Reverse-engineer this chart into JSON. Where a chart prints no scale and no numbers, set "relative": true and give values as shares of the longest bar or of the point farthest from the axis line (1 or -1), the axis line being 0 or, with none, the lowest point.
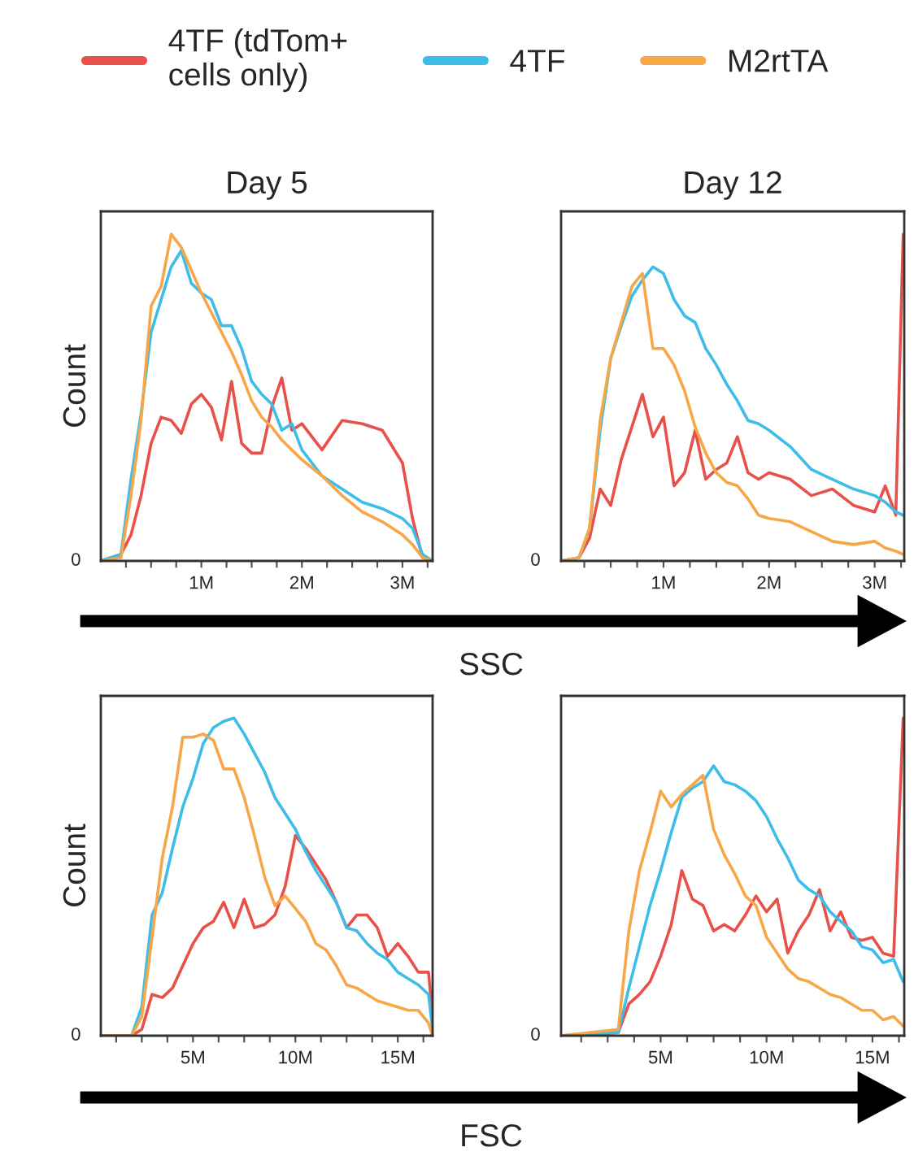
{
  "chart_data": [
    {
      "type": "line",
      "title": "Day 5",
      "ylabel": "Count",
      "xlabel": "SSC",
      "relative": true,
      "legend": "top",
      "annotations": [
        "0"
      ],
      "x": [
        0,
        0.2,
        0.3,
        0.4,
        0.5,
        0.6,
        0.7,
        0.8,
        0.9,
        1.0,
        1.1,
        1.2,
        1.3,
        1.4,
        1.5,
        1.6,
        1.7,
        1.8,
        1.9,
        2.0,
        2.2,
        2.4,
        2.6,
        2.8,
        3.0,
        3.1,
        3.2,
        3.3
      ],
      "xlim": [
        0,
        3.3
      ],
      "xticks": [
        {
          "value": 0.25,
          "label": null
        },
        {
          "value": 0.5,
          "label": null
        },
        {
          "value": 0.75,
          "label": null
        },
        {
          "value": 1,
          "label": "1M"
        },
        {
          "value": 1.25,
          "label": null
        },
        {
          "value": 1.5,
          "label": null
        },
        {
          "value": 1.75,
          "label": null
        },
        {
          "value": 2,
          "label": "2M"
        },
        {
          "value": 2.25,
          "label": null
        },
        {
          "value": 2.5,
          "label": null
        },
        {
          "value": 2.75,
          "label": null
        },
        {
          "value": 3,
          "label": "3M"
        },
        {
          "value": 3.25,
          "label": null
        }
      ],
      "series": [
        {
          "name": "4TF (tdTom+\ncells only)",
          "color": "#e8504a",
          "values": [
            0,
            0.02,
            0.08,
            0.2,
            0.36,
            0.44,
            0.43,
            0.39,
            0.48,
            0.51,
            0.47,
            0.37,
            0.55,
            0.36,
            0.33,
            0.33,
            0.47,
            0.56,
            0.4,
            0.42,
            0.34,
            0.43,
            0.42,
            0.4,
            0.3,
            0.13,
            0.01,
            0
          ]
        },
        {
          "name": "4TF",
          "color": "#3dbde8",
          "values": [
            0,
            0.02,
            0.25,
            0.45,
            0.7,
            0.8,
            0.9,
            0.95,
            0.85,
            0.82,
            0.8,
            0.72,
            0.72,
            0.65,
            0.55,
            0.51,
            0.48,
            0.4,
            0.42,
            0.34,
            0.26,
            0.22,
            0.18,
            0.16,
            0.13,
            0.1,
            0.02,
            0
          ]
        },
        {
          "name": "M2rtTA",
          "color": "#f7a747",
          "values": [
            0,
            0.01,
            0.2,
            0.43,
            0.78,
            0.84,
            1.0,
            0.96,
            0.89,
            0.82,
            0.76,
            0.7,
            0.64,
            0.57,
            0.49,
            0.44,
            0.41,
            0.37,
            0.34,
            0.31,
            0.26,
            0.2,
            0.15,
            0.12,
            0.08,
            0.05,
            0.01,
            0
          ]
        }
      ]
    },
    {
      "type": "line",
      "title": "Day 12",
      "relative": true,
      "annotations": [
        "0"
      ],
      "x": [
        0.03,
        0.2,
        0.3,
        0.4,
        0.5,
        0.6,
        0.7,
        0.8,
        0.9,
        1.0,
        1.1,
        1.2,
        1.3,
        1.4,
        1.5,
        1.6,
        1.7,
        1.8,
        1.9,
        2.0,
        2.2,
        2.4,
        2.6,
        2.8,
        3.0,
        3.1,
        3.2,
        3.27
      ],
      "xlim": [
        0.03,
        3.28
      ],
      "xticks": [
        {
          "value": 0.25,
          "label": null
        },
        {
          "value": 0.5,
          "label": null
        },
        {
          "value": 0.75,
          "label": null
        },
        {
          "value": 1,
          "label": "1M"
        },
        {
          "value": 1.25,
          "label": null
        },
        {
          "value": 1.5,
          "label": null
        },
        {
          "value": 1.75,
          "label": null
        },
        {
          "value": 2,
          "label": "2M"
        },
        {
          "value": 2.25,
          "label": null
        },
        {
          "value": 2.5,
          "label": null
        },
        {
          "value": 2.75,
          "label": null
        },
        {
          "value": 3,
          "label": "3M"
        },
        {
          "value": 3.25,
          "label": null
        }
      ],
      "series": [
        {
          "color": "#e8504a",
          "values": [
            0,
            0.01,
            0.07,
            0.22,
            0.17,
            0.31,
            0.41,
            0.51,
            0.38,
            0.44,
            0.23,
            0.27,
            0.4,
            0.25,
            0.28,
            0.3,
            0.38,
            0.27,
            0.25,
            0.27,
            0.25,
            0.2,
            0.22,
            0.17,
            0.15,
            0.23,
            0.14,
            1.0
          ]
        },
        {
          "color": "#3dbde8",
          "values": [
            0,
            0.01,
            0.1,
            0.4,
            0.62,
            0.72,
            0.81,
            0.86,
            0.9,
            0.88,
            0.8,
            0.75,
            0.73,
            0.65,
            0.6,
            0.54,
            0.49,
            0.43,
            0.42,
            0.4,
            0.35,
            0.28,
            0.25,
            0.22,
            0.2,
            0.18,
            0.15,
            0.14
          ]
        },
        {
          "color": "#f7a747",
          "values": [
            0,
            0.01,
            0.1,
            0.43,
            0.62,
            0.73,
            0.84,
            0.88,
            0.65,
            0.65,
            0.6,
            0.52,
            0.41,
            0.33,
            0.27,
            0.24,
            0.23,
            0.19,
            0.14,
            0.13,
            0.12,
            0.09,
            0.06,
            0.05,
            0.06,
            0.04,
            0.03,
            0.02
          ]
        }
      ]
    },
    {
      "type": "line",
      "ylabel": "Count",
      "xlabel": "FSC",
      "relative": true,
      "annotations": [
        "0"
      ],
      "x": [
        0.5,
        2,
        2.5,
        3,
        3.5,
        4,
        4.5,
        5,
        5.5,
        6,
        6.5,
        7,
        7.5,
        8,
        8.5,
        9,
        9.5,
        10,
        10.5,
        11,
        11.5,
        12,
        12.5,
        13,
        13.5,
        14,
        14.5,
        15,
        15.5,
        16,
        16.5,
        16.7
      ],
      "xlim": [
        0.5,
        16.7
      ],
      "xticks": [
        {
          "value": 1.25,
          "label": null
        },
        {
          "value": 2.5,
          "label": null
        },
        {
          "value": 3.75,
          "label": null
        },
        {
          "value": 5,
          "label": "5M"
        },
        {
          "value": 6.25,
          "label": null
        },
        {
          "value": 7.5,
          "label": null
        },
        {
          "value": 8.75,
          "label": null
        },
        {
          "value": 10,
          "label": "10M"
        },
        {
          "value": 11.25,
          "label": null
        },
        {
          "value": 12.5,
          "label": null
        },
        {
          "value": 13.75,
          "label": null
        },
        {
          "value": 15,
          "label": "15M"
        },
        {
          "value": 16.25,
          "label": null
        }
      ],
      "series": [
        {
          "color": "#e8504a",
          "values": [
            0,
            0,
            0.02,
            0.13,
            0.12,
            0.15,
            0.22,
            0.29,
            0.34,
            0.36,
            0.42,
            0.34,
            0.43,
            0.34,
            0.35,
            0.38,
            0.47,
            0.63,
            0.59,
            0.54,
            0.49,
            0.42,
            0.34,
            0.38,
            0.38,
            0.34,
            0.25,
            0.29,
            0.25,
            0.2,
            0.2,
            0.06
          ]
        },
        {
          "color": "#3dbde8",
          "values": [
            0,
            0,
            0.09,
            0.38,
            0.45,
            0.59,
            0.72,
            0.81,
            0.92,
            0.97,
            0.99,
            1.0,
            0.95,
            0.89,
            0.83,
            0.75,
            0.7,
            0.65,
            0.58,
            0.52,
            0.47,
            0.42,
            0.34,
            0.33,
            0.29,
            0.26,
            0.24,
            0.2,
            0.18,
            0.16,
            0.13,
            0.02
          ]
        },
        {
          "color": "#f7a747",
          "values": [
            0,
            0,
            0.06,
            0.31,
            0.56,
            0.72,
            0.94,
            0.94,
            0.95,
            0.93,
            0.84,
            0.84,
            0.75,
            0.63,
            0.5,
            0.41,
            0.44,
            0.4,
            0.36,
            0.29,
            0.27,
            0.22,
            0.16,
            0.15,
            0.13,
            0.11,
            0.1,
            0.09,
            0.08,
            0.08,
            0.04,
            0
          ]
        }
      ]
    },
    {
      "type": "line",
      "relative": true,
      "annotations": [
        "0"
      ],
      "x": [
        0.3,
        3,
        3.5,
        4,
        4.5,
        5,
        5.5,
        6,
        6.5,
        7,
        7.5,
        8,
        8.5,
        9,
        9.5,
        10,
        10.5,
        11,
        11.5,
        12,
        12.5,
        13,
        13.5,
        14,
        14.5,
        15,
        15.5,
        16,
        16.45
      ],
      "xlim": [
        0.3,
        16.5
      ],
      "xticks": [
        {
          "value": 1.25,
          "label": null
        },
        {
          "value": 2.5,
          "label": null
        },
        {
          "value": 3.75,
          "label": null
        },
        {
          "value": 5,
          "label": "5M"
        },
        {
          "value": 6.25,
          "label": null
        },
        {
          "value": 7.5,
          "label": null
        },
        {
          "value": 8.75,
          "label": null
        },
        {
          "value": 10,
          "label": "10M"
        },
        {
          "value": 11.25,
          "label": null
        },
        {
          "value": 12.5,
          "label": null
        },
        {
          "value": 13.75,
          "label": null
        },
        {
          "value": 15,
          "label": "15M"
        },
        {
          "value": 16.25,
          "label": null
        }
      ],
      "series": [
        {
          "color": "#e8504a",
          "values": [
            0,
            0.01,
            0.1,
            0.13,
            0.17,
            0.25,
            0.35,
            0.52,
            0.43,
            0.41,
            0.33,
            0.35,
            0.33,
            0.38,
            0.44,
            0.39,
            0.43,
            0.26,
            0.33,
            0.38,
            0.46,
            0.33,
            0.39,
            0.31,
            0.3,
            0.31,
            0.26,
            0.25,
            1.0
          ]
        },
        {
          "color": "#3dbde8",
          "values": [
            0,
            0.01,
            0.15,
            0.28,
            0.41,
            0.52,
            0.64,
            0.75,
            0.78,
            0.8,
            0.85,
            0.8,
            0.79,
            0.77,
            0.74,
            0.69,
            0.62,
            0.56,
            0.49,
            0.46,
            0.44,
            0.39,
            0.36,
            0.33,
            0.28,
            0.27,
            0.23,
            0.24,
            0.17
          ]
        },
        {
          "color": "#f7a747",
          "values": [
            0,
            0.02,
            0.33,
            0.52,
            0.64,
            0.77,
            0.72,
            0.76,
            0.79,
            0.82,
            0.65,
            0.57,
            0.51,
            0.44,
            0.41,
            0.31,
            0.26,
            0.21,
            0.18,
            0.17,
            0.15,
            0.13,
            0.12,
            0.1,
            0.08,
            0.08,
            0.05,
            0.06,
            0.03
          ]
        }
      ]
    }
  ]
}
